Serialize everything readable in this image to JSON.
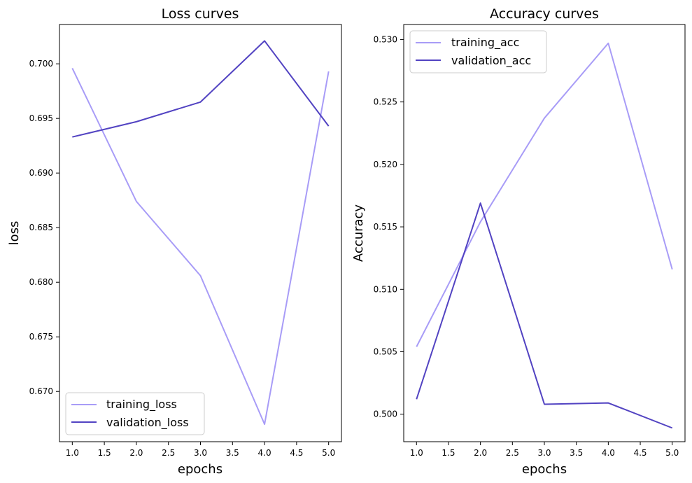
{
  "colors": {
    "training": "#a89cf7",
    "validation": "#5243c2",
    "legend_border": "#cccccc"
  },
  "chart_data": [
    {
      "type": "line",
      "title": "Loss curves",
      "xlabel": "epochs",
      "ylabel": "loss",
      "x": [
        1,
        2,
        3,
        4,
        5
      ],
      "xlim": [
        0.8,
        5.2
      ],
      "ylim": [
        0.6654,
        0.7036
      ],
      "xticks": [
        "1.0",
        "1.5",
        "2.0",
        "2.5",
        "3.0",
        "3.5",
        "4.0",
        "4.5",
        "5.0"
      ],
      "yticks": [
        "0.670",
        "0.675",
        "0.680",
        "0.685",
        "0.690",
        "0.695",
        "0.700"
      ],
      "legend_position": "lower-left",
      "grid": false,
      "series": [
        {
          "name": "training_loss",
          "values": [
            0.6996,
            0.6874,
            0.6806,
            0.667,
            0.6993
          ]
        },
        {
          "name": "validation_loss",
          "values": [
            0.6933,
            0.6947,
            0.6965,
            0.7021,
            0.6943
          ]
        }
      ]
    },
    {
      "type": "line",
      "title": "Accuracy curves",
      "xlabel": "epochs",
      "ylabel": "Accuracy",
      "x": [
        1,
        2,
        3,
        4,
        5
      ],
      "xlim": [
        0.8,
        5.2
      ],
      "ylim": [
        0.4978,
        0.5312
      ],
      "xticks": [
        "1.0",
        "1.5",
        "2.0",
        "2.5",
        "3.0",
        "3.5",
        "4.0",
        "4.5",
        "5.0"
      ],
      "yticks": [
        "0.500",
        "0.505",
        "0.510",
        "0.515",
        "0.520",
        "0.525",
        "0.530"
      ],
      "legend_position": "top-left",
      "grid": false,
      "series": [
        {
          "name": "training_acc",
          "values": [
            0.5054,
            0.5154,
            0.5237,
            0.5297,
            0.5116
          ]
        },
        {
          "name": "validation_acc",
          "values": [
            0.5012,
            0.5169,
            0.5008,
            0.5009,
            0.4989
          ]
        }
      ]
    }
  ]
}
